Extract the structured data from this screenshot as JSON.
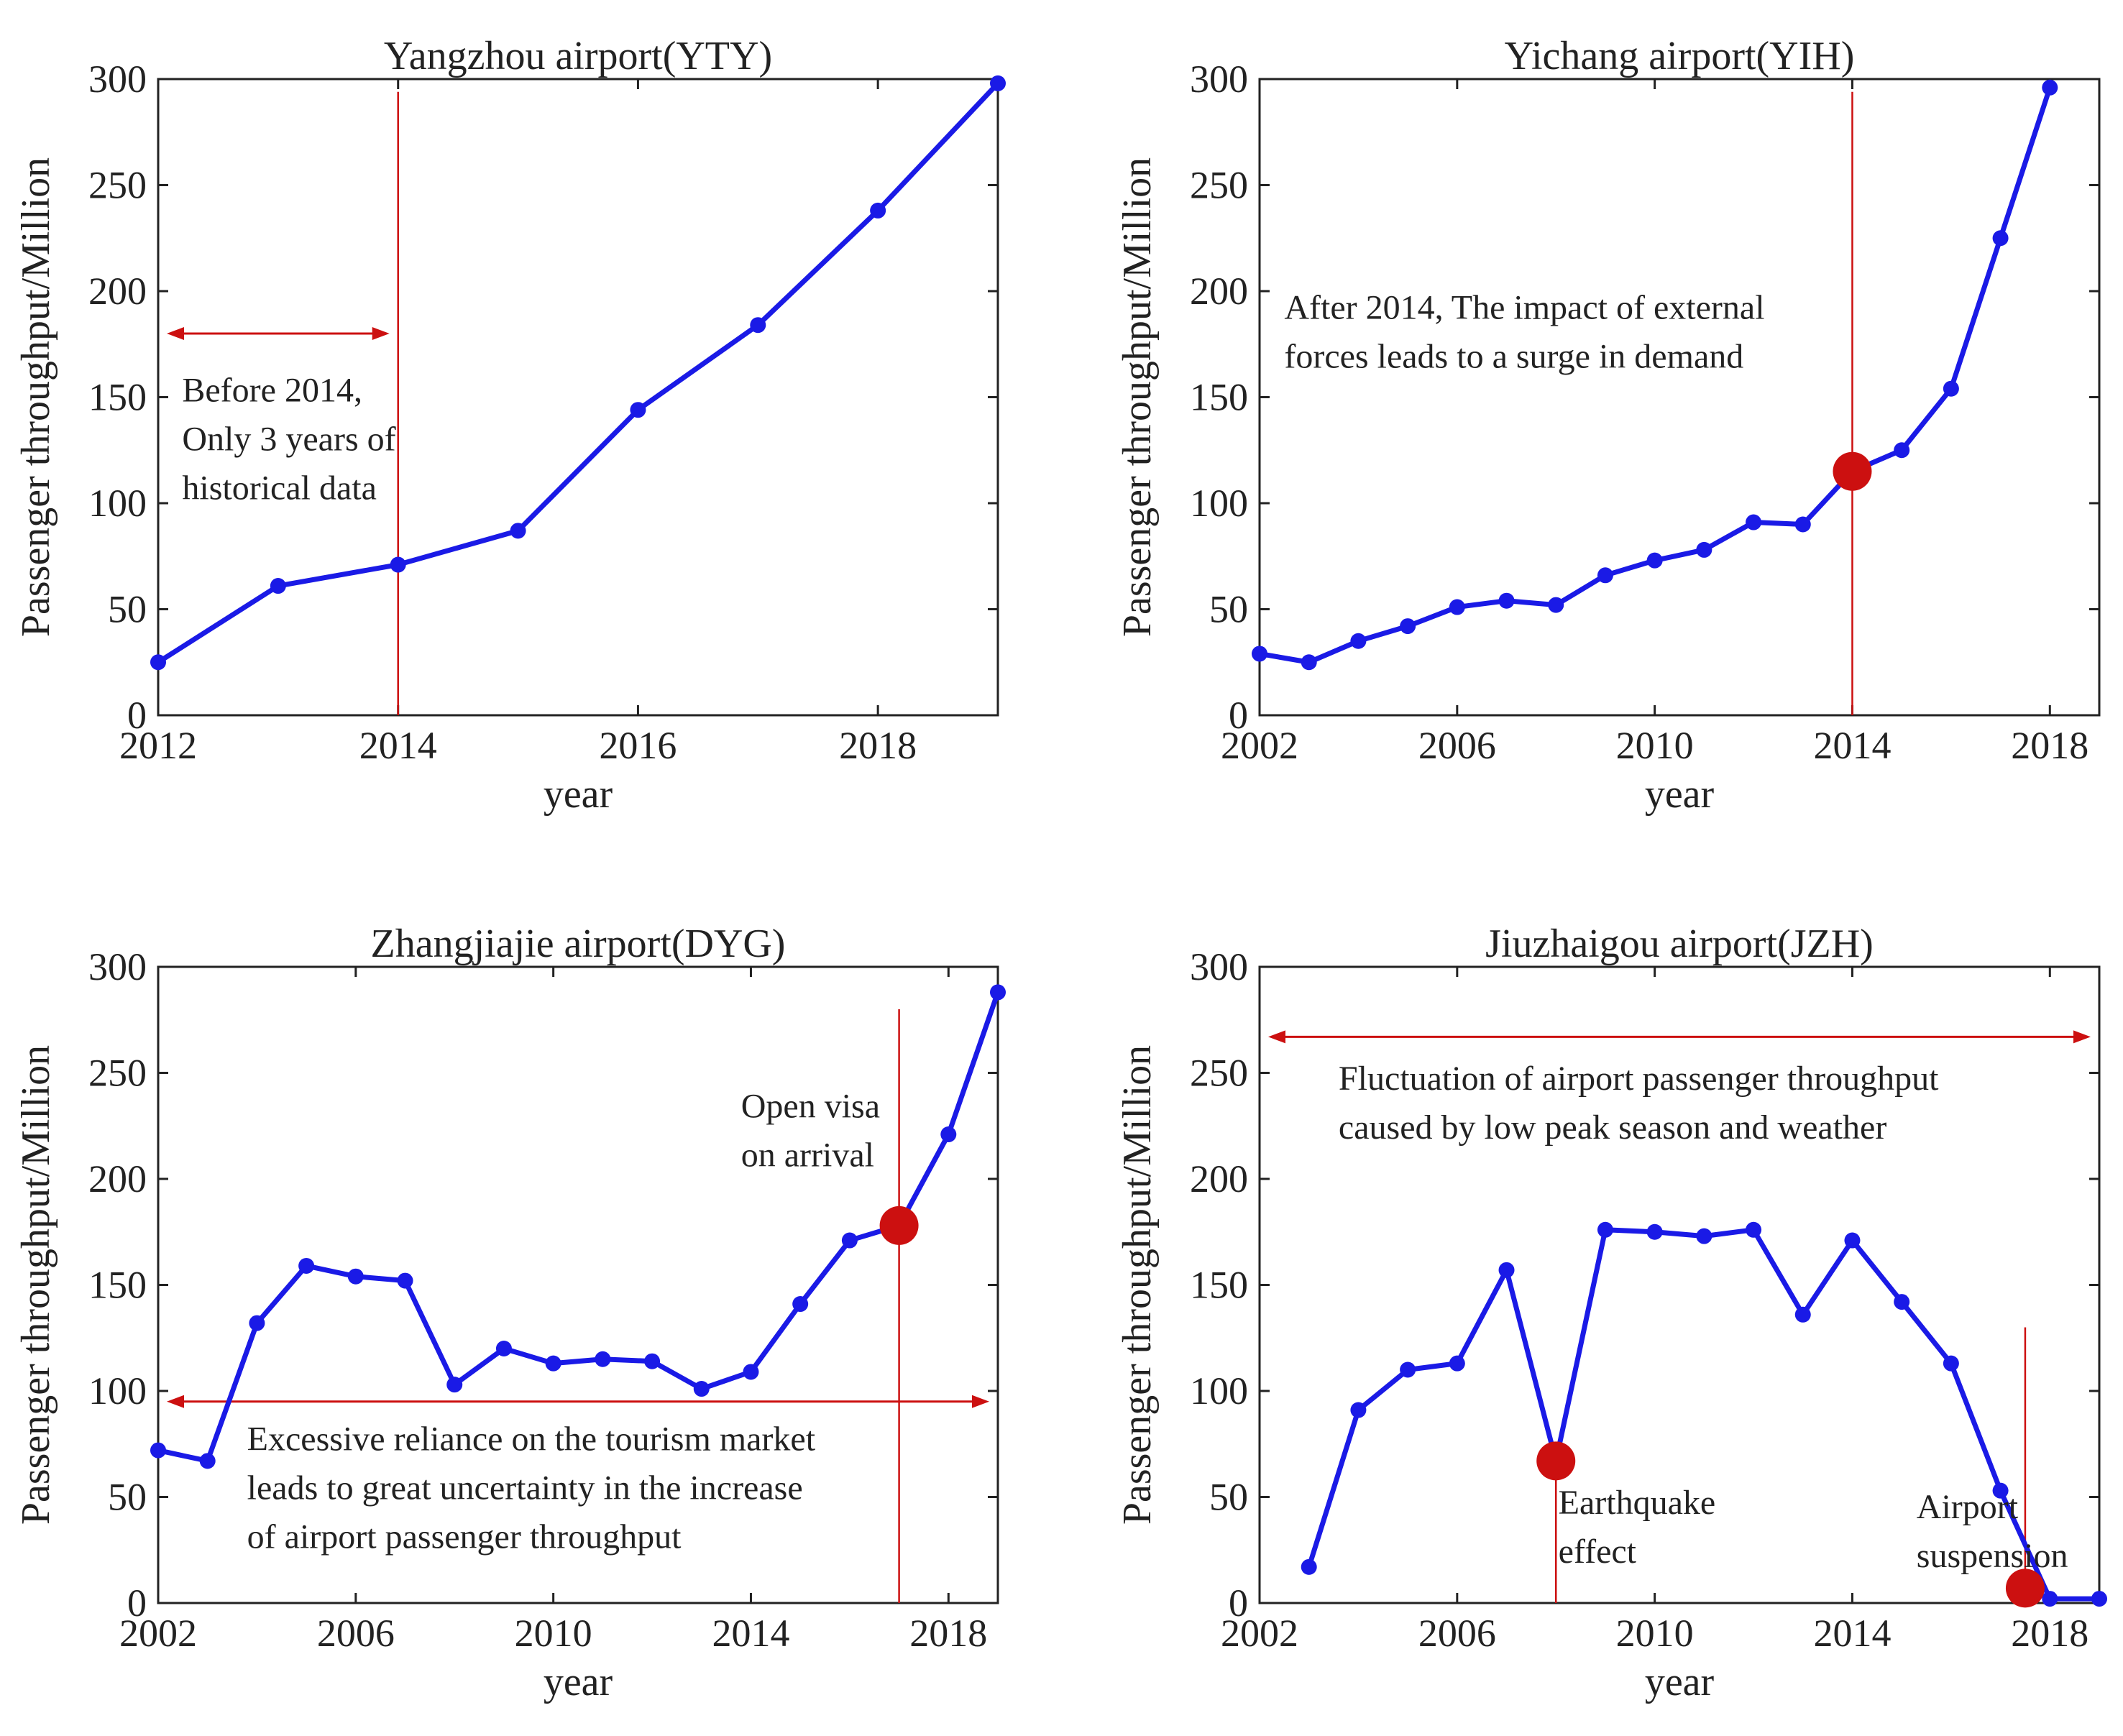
{
  "colors": {
    "line": "#1a1ae6",
    "accent": "#cc1010",
    "axis": "#222222"
  },
  "chart_data": [
    {
      "type": "line",
      "title": "Yangzhou airport(YTY)",
      "xlabel": "year",
      "ylabel": "Passenger throughput/Million",
      "xlim": [
        2012,
        2019
      ],
      "ylim": [
        0,
        300
      ],
      "xticks": [
        2012,
        2014,
        2016,
        2018
      ],
      "yticks": [
        0,
        50,
        100,
        150,
        200,
        250,
        300
      ],
      "x": [
        2012,
        2013,
        2014,
        2015,
        2016,
        2017,
        2018,
        2019
      ],
      "y": [
        25,
        61,
        71,
        87,
        144,
        184,
        238,
        298
      ],
      "vlines": [
        {
          "x": 2014,
          "y0": 0,
          "y1": 294
        }
      ],
      "arrows": [
        {
          "x0": 2012,
          "x1": 2014,
          "y": 180
        }
      ],
      "events": [],
      "annotations": [
        {
          "lines": [
            "Before 2014,",
            "Only 3 years of",
            "historical data"
          ],
          "x": 2012.2,
          "y": 148
        }
      ]
    },
    {
      "type": "line",
      "title": "Yichang airport(YIH)",
      "xlabel": "year",
      "ylabel": "Passenger throughput/Million",
      "xlim": [
        2002,
        2019
      ],
      "ylim": [
        0,
        300
      ],
      "xticks": [
        2002,
        2006,
        2010,
        2014,
        2018
      ],
      "yticks": [
        0,
        50,
        100,
        150,
        200,
        250,
        300
      ],
      "x": [
        2002,
        2003,
        2004,
        2005,
        2006,
        2007,
        2008,
        2009,
        2010,
        2011,
        2012,
        2013,
        2014,
        2015,
        2016,
        2017,
        2018
      ],
      "y": [
        29,
        25,
        35,
        42,
        51,
        54,
        52,
        66,
        73,
        78,
        91,
        90,
        115,
        125,
        154,
        225,
        296
      ],
      "vlines": [
        {
          "x": 2014,
          "y0": 0,
          "y1": 294
        }
      ],
      "arrows": [],
      "events": [
        {
          "x": 2014,
          "y": 115
        }
      ],
      "annotations": [
        {
          "lines": [
            "After 2014, The impact of external",
            "forces leads to a surge in demand"
          ],
          "x": 2002.5,
          "y": 187
        }
      ]
    },
    {
      "type": "line",
      "title": "Zhangjiajie airport(DYG)",
      "xlabel": "year",
      "ylabel": "Passenger throughput/Million",
      "xlim": [
        2002,
        2019
      ],
      "ylim": [
        0,
        300
      ],
      "xticks": [
        2002,
        2006,
        2010,
        2014,
        2018
      ],
      "yticks": [
        0,
        50,
        100,
        150,
        200,
        250,
        300
      ],
      "x": [
        2002,
        2003,
        2004,
        2005,
        2006,
        2007,
        2008,
        2009,
        2010,
        2011,
        2012,
        2013,
        2014,
        2015,
        2016,
        2017,
        2018,
        2019
      ],
      "y": [
        72,
        67,
        132,
        159,
        154,
        152,
        103,
        120,
        113,
        115,
        114,
        101,
        109,
        141,
        171,
        178,
        221,
        288
      ],
      "vlines": [
        {
          "x": 2017,
          "y0": 0,
          "y1": 280
        }
      ],
      "arrows": [
        {
          "x0": 2002,
          "x1": 2019,
          "y": 95
        }
      ],
      "events": [
        {
          "x": 2017,
          "y": 178
        }
      ],
      "annotations": [
        {
          "lines": [
            "Open visa",
            "on arrival"
          ],
          "x": 2013.8,
          "y": 229
        },
        {
          "lines": [
            "Excessive reliance on the tourism market",
            "leads to great uncertainty in the increase",
            "of airport passenger throughput"
          ],
          "x": 2003.8,
          "y": 72
        }
      ]
    },
    {
      "type": "line",
      "title": "Jiuzhaigou airport(JZH)",
      "xlabel": "year",
      "ylabel": "Passenger throughput/Million",
      "xlim": [
        2002,
        2019
      ],
      "ylim": [
        0,
        300
      ],
      "xticks": [
        2002,
        2006,
        2010,
        2014,
        2018
      ],
      "yticks": [
        0,
        50,
        100,
        150,
        200,
        250,
        300
      ],
      "x": [
        2003,
        2004,
        2005,
        2006,
        2007,
        2008,
        2009,
        2010,
        2011,
        2012,
        2013,
        2014,
        2015,
        2016,
        2017,
        2018,
        2019
      ],
      "y": [
        17,
        91,
        110,
        113,
        157,
        67,
        176,
        175,
        173,
        176,
        136,
        171,
        142,
        113,
        53,
        2,
        2
      ],
      "vlines": [
        {
          "x": 2008,
          "y0": 0,
          "y1": 67
        },
        {
          "x": 2017.5,
          "y0": 0,
          "y1": 130
        }
      ],
      "arrows": [
        {
          "x0": 2002,
          "x1": 2019,
          "y": 267
        }
      ],
      "events": [
        {
          "x": 2008,
          "y": 67
        },
        {
          "x": 2017.5,
          "y": 7
        }
      ],
      "annotations": [
        {
          "lines": [
            "Fluctuation of airport passenger throughput",
            "caused by low peak season and weather"
          ],
          "x": 2003.6,
          "y": 242
        },
        {
          "lines": [
            "Earthquake",
            "effect"
          ],
          "x": 2008.05,
          "y": 42
        },
        {
          "lines": [
            "Airport",
            "suspension"
          ],
          "x": 2015.3,
          "y": 40
        }
      ]
    }
  ]
}
